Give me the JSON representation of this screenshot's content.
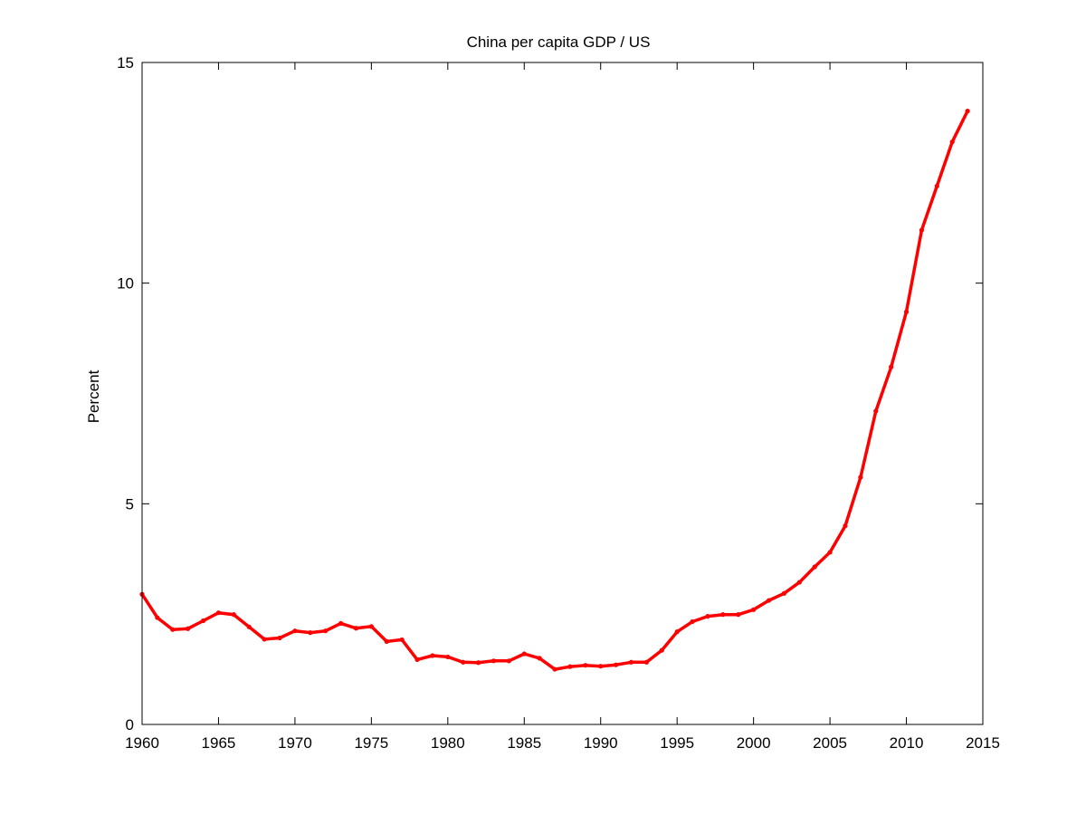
{
  "chart_data": {
    "type": "line",
    "title": "China per capita GDP / US",
    "xlabel": "",
    "ylabel": "Percent",
    "xlim": [
      1960,
      2015
    ],
    "ylim": [
      0,
      15
    ],
    "xticks": [
      1960,
      1965,
      1970,
      1975,
      1980,
      1985,
      1990,
      1995,
      2000,
      2005,
      2010,
      2015
    ],
    "yticks": [
      0,
      5,
      10,
      15
    ],
    "grid": false,
    "legend": "none",
    "series": [
      {
        "color": "#ff0000",
        "x": [
          1960,
          1961,
          1962,
          1963,
          1964,
          1965,
          1966,
          1967,
          1968,
          1969,
          1970,
          1971,
          1972,
          1973,
          1974,
          1975,
          1976,
          1977,
          1978,
          1979,
          1980,
          1981,
          1982,
          1983,
          1984,
          1985,
          1986,
          1987,
          1988,
          1989,
          1990,
          1991,
          1992,
          1993,
          1994,
          1995,
          1996,
          1997,
          1998,
          1999,
          2000,
          2001,
          2002,
          2003,
          2004,
          2005,
          2006,
          2007,
          2008,
          2009,
          2010,
          2011,
          2012,
          2013,
          2014
        ],
        "y": [
          2.95,
          2.42,
          2.15,
          2.17,
          2.35,
          2.53,
          2.49,
          2.21,
          1.93,
          1.96,
          2.12,
          2.08,
          2.12,
          2.29,
          2.18,
          2.22,
          1.88,
          1.92,
          1.47,
          1.56,
          1.53,
          1.41,
          1.4,
          1.44,
          1.44,
          1.6,
          1.5,
          1.25,
          1.31,
          1.34,
          1.32,
          1.35,
          1.41,
          1.41,
          1.68,
          2.1,
          2.33,
          2.45,
          2.49,
          2.49,
          2.6,
          2.81,
          2.97,
          3.22,
          3.57,
          3.9,
          4.5,
          5.6,
          7.1,
          8.1,
          9.35,
          11.2,
          12.2,
          13.2,
          13.9
        ]
      }
    ]
  }
}
